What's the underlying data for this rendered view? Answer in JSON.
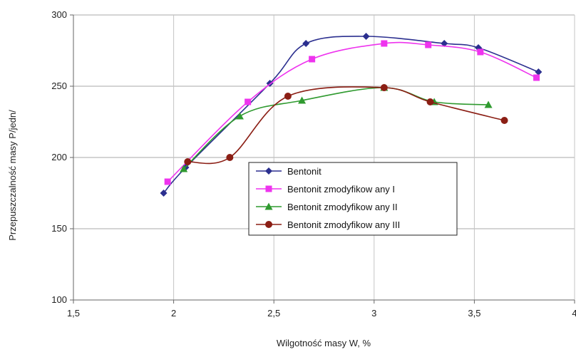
{
  "chart_data": {
    "type": "line",
    "title": "",
    "xlabel": "Wilgotność masy W, %",
    "ylabel": "Przepuszczalność masy P/jedn/",
    "xlim": [
      1.5,
      4
    ],
    "ylim": [
      100,
      300
    ],
    "x_ticks": [
      1.5,
      2,
      2.5,
      3,
      3.5,
      4
    ],
    "x_tick_labels": [
      "1,5",
      "2",
      "2,5",
      "3",
      "3,5",
      "4"
    ],
    "y_ticks": [
      100,
      150,
      200,
      250,
      300
    ],
    "y_tick_labels": [
      "100",
      "150",
      "200",
      "250",
      "300"
    ],
    "grid": "horizontal and vertical",
    "legend_position": "center",
    "series": [
      {
        "name": "Bentonit",
        "color": "#2b2f8f",
        "marker": "diamond",
        "x": [
          1.95,
          2.06,
          2.48,
          2.66,
          2.96,
          3.35,
          3.52,
          3.82
        ],
        "y": [
          175,
          193,
          252,
          280,
          285,
          280,
          277,
          260
        ]
      },
      {
        "name": "Bentonit zmodyfikow any I",
        "color": "#ee33ee",
        "marker": "square",
        "x": [
          1.97,
          2.37,
          2.69,
          3.05,
          3.27,
          3.53,
          3.81
        ],
        "y": [
          183,
          239,
          269,
          280,
          279,
          274,
          256
        ]
      },
      {
        "name": "Bentonit zmodyfikow any II",
        "color": "#2f9a2f",
        "marker": "triangle",
        "x": [
          2.05,
          2.33,
          2.64,
          3.05,
          3.3,
          3.57
        ],
        "y": [
          192,
          229,
          240,
          249,
          239,
          237
        ]
      },
      {
        "name": "Bentonit zmodyfikow any III",
        "color": "#8b1e14",
        "marker": "circle",
        "x": [
          2.07,
          2.28,
          2.57,
          3.05,
          3.28,
          3.65
        ],
        "y": [
          197,
          200,
          243,
          249,
          239,
          226
        ]
      }
    ]
  }
}
